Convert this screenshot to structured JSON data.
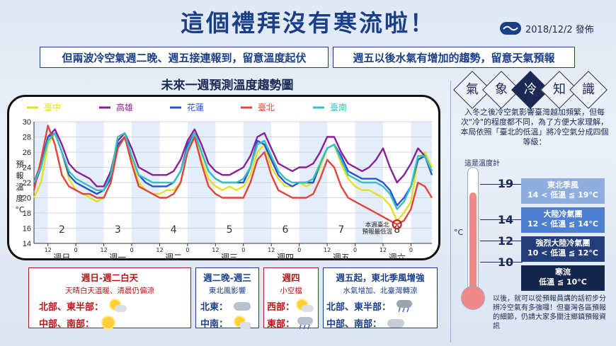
{
  "title": "這個禮拜沒有寒流啦！",
  "publish_date": "2018/12/2 發佈",
  "banners": {
    "left": "但兩波冷空氣週二晚、週五接連報到，留意溫度起伏",
    "right": "週五以後水氣有增加的趨勢，留意天氣預報"
  },
  "chart_data": {
    "type": "line",
    "title": "未來一週預測溫度趨勢圖",
    "ylabel": "預報溫度°C",
    "ylim": [
      14,
      30
    ],
    "yticks": [
      14,
      16,
      18,
      20,
      22,
      24,
      26,
      28,
      30
    ],
    "day_numbers": [
      "2",
      "3",
      "4",
      "5",
      "6",
      "7",
      "8"
    ],
    "x_hour_labels": [
      "0",
      "12"
    ],
    "weekday_labels": [
      "週日",
      "週一",
      "週二",
      "週三",
      "週四",
      "週五",
      "週六"
    ],
    "annotation": "本週臺北預報最低溫",
    "x": [
      0,
      3,
      6,
      9,
      12,
      15,
      18,
      21,
      24,
      27,
      30,
      33,
      36,
      39,
      42,
      45,
      48,
      51,
      54,
      57,
      60,
      63,
      66,
      69,
      72,
      75,
      78,
      81,
      84,
      87,
      90,
      93,
      96,
      99,
      102,
      105,
      108,
      111,
      114,
      117,
      120,
      123,
      126,
      129,
      132,
      135,
      138,
      141,
      144,
      147,
      150,
      153,
      156,
      159,
      162,
      165,
      168,
      171
    ],
    "series": [
      {
        "name": "臺中",
        "color": "#e3e021",
        "values": [
          20,
          22,
          27,
          28.5,
          26,
          22.5,
          21,
          20.5,
          20,
          19.5,
          20,
          22,
          27,
          28,
          25,
          22,
          21,
          20.5,
          20.5,
          21,
          21,
          22,
          26,
          28,
          25,
          22.5,
          21.5,
          21,
          21.5,
          21,
          21.5,
          23,
          26,
          27,
          24,
          22.5,
          21.5,
          21.5,
          22,
          21.5,
          22,
          24,
          26.5,
          27,
          24.5,
          22.5,
          21.5,
          21,
          21,
          20.5,
          20,
          19,
          17,
          18,
          19.5,
          25,
          26,
          24
        ]
      },
      {
        "name": "高雄",
        "color": "#8a1e9b",
        "values": [
          22,
          24.5,
          28,
          29,
          27,
          24.5,
          23.5,
          23,
          22.5,
          21.5,
          21.5,
          23.5,
          27.5,
          28.5,
          26.5,
          24,
          23.5,
          23,
          23,
          23,
          23.5,
          25,
          27.5,
          29,
          27,
          24.5,
          23.5,
          23,
          23,
          23.5,
          24,
          25.5,
          28,
          28.5,
          26.5,
          24.5,
          24,
          23.5,
          24,
          24,
          24.5,
          26,
          28,
          28,
          26,
          24.5,
          24,
          23.5,
          24,
          25,
          26.5,
          24,
          22,
          23,
          24.5,
          26.5,
          25.5,
          23.5
        ]
      },
      {
        "name": "花蓮",
        "color": "#2c4fd6",
        "values": [
          21.5,
          24,
          28,
          28.5,
          26,
          23,
          22,
          21.5,
          21,
          20.5,
          21,
          22.5,
          27,
          28,
          25.5,
          23,
          22,
          21.5,
          21.5,
          21.5,
          22,
          23.5,
          27,
          28.5,
          26,
          23.5,
          22.5,
          22,
          22,
          22,
          22,
          24,
          27.5,
          27,
          25,
          23,
          22,
          21.5,
          22,
          22,
          22,
          24.5,
          26.5,
          27,
          25.5,
          23.5,
          23,
          22.5,
          22.5,
          22.5,
          22,
          21,
          19,
          20,
          21.5,
          25,
          25.5,
          23
        ]
      },
      {
        "name": "臺北",
        "color": "#e2443c",
        "values": [
          21,
          25,
          29.5,
          27,
          23,
          21.5,
          21,
          20.5,
          20.5,
          20,
          20,
          22,
          26.5,
          28,
          24.5,
          21.5,
          21,
          20.5,
          20,
          20,
          20.5,
          22,
          26,
          28,
          24.5,
          21.5,
          20.5,
          20,
          20,
          20,
          20,
          22,
          25,
          26,
          23,
          21,
          20.5,
          20,
          20,
          20,
          20.5,
          22.5,
          25,
          24,
          21.5,
          20,
          19.5,
          19,
          18.5,
          18,
          17.5,
          17,
          16.5,
          17,
          18.5,
          22,
          21.5,
          20
        ]
      },
      {
        "name": "臺南",
        "color": "#33c2c2",
        "values": [
          22,
          24,
          27.5,
          28.5,
          26,
          23.5,
          22.5,
          22,
          21.5,
          21,
          21,
          23,
          28,
          28.5,
          25.5,
          23,
          22.5,
          22,
          22,
          22,
          22,
          23.5,
          26.5,
          28.5,
          26,
          23.5,
          22.5,
          22,
          22,
          22,
          22.5,
          24,
          27,
          27.5,
          25.5,
          23.5,
          22.5,
          22,
          22,
          22,
          22.5,
          24.5,
          26.5,
          27,
          25,
          23,
          22.5,
          22,
          22,
          22,
          21.5,
          20.5,
          18.5,
          19.5,
          21.5,
          25.5,
          25.5,
          23.5
        ]
      }
    ]
  },
  "panels": [
    {
      "header": "週日-週二白天",
      "sub": "天晴白天溫暖、清晨仍偏涼",
      "rows": [
        {
          "label": "北部、東半部：",
          "icon": "sun-cloud-icon"
        },
        {
          "label": "中部、南部：",
          "icon": "sun-icon"
        }
      ]
    },
    {
      "header": "週二晚-週三",
      "sub": "東北風影響",
      "rows": [
        {
          "label": "北東：",
          "icon": "cloud-icon"
        },
        {
          "label": "中南：",
          "icon": "sun-cloud-icon"
        }
      ]
    },
    {
      "header": "週四",
      "sub": "小空檔",
      "rows": [
        {
          "label": "西部：",
          "icon": "sun-cloud-icon"
        },
        {
          "label": "東部：",
          "icon": "cloud-rain-icon"
        }
      ]
    },
    {
      "header": "週五起，東北季風增強",
      "sub": "水氣增加、北臺灣轉涼",
      "rows": [
        {
          "label": "北部、東半部：",
          "icon": "cloud-rain-icon"
        },
        {
          "label": "中部、南部：",
          "icon": "cloud-icon"
        }
      ]
    }
  ],
  "sidebar": {
    "keywords": [
      "氣",
      "象",
      "冷",
      "知",
      "識"
    ],
    "highlight_index": 2,
    "intro": "入冬之後冷空氣影響臺灣越加頻繁，但每次\"冷\"的程度都不同，為了方便大家理解，本局依照「臺北的低溫」將冷空氣分成四個等級：",
    "thermo_label": "這是溫度計",
    "unit": "°C",
    "thresholds": [
      "19",
      "14",
      "12",
      "10"
    ],
    "levels": [
      {
        "name": "東北季風",
        "range": "14 < 低溫 ≦ 19°C",
        "color": "#8eaee0"
      },
      {
        "name": "大陸冷氣團",
        "range": "12 < 低溫 ≦ 14°C",
        "color": "#4f7fd0"
      },
      {
        "name": "強烈大陸冷氣團",
        "range": "10 < 低溫 ≦ 12°C",
        "color": "#243e7a"
      },
      {
        "name": "寒流",
        "range": "低溫 ≦ 10°C",
        "color": "#15264d"
      }
    ],
    "outro": "以後，就可以從預報員講的話初步分辨冷空氣有多強囉！但臺灣各區預報的細節，仍請大家多關注鄉鎮預報資訊"
  }
}
